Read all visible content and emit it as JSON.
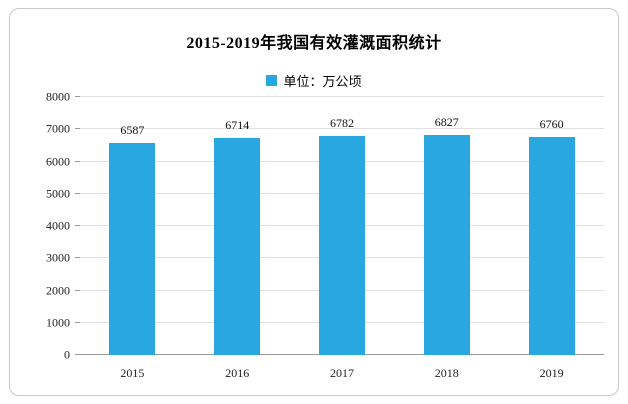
{
  "chart_data": {
    "type": "bar",
    "title": "2015-2019年我国有效灌溉面积统计",
    "legend": "单位：万公顷",
    "categories": [
      "2015",
      "2016",
      "2017",
      "2018",
      "2019"
    ],
    "values": [
      6587,
      6714,
      6782,
      6827,
      6760
    ],
    "ylabel": "",
    "xlabel": "",
    "ylim": [
      0,
      8000
    ],
    "ytick_step": 1000,
    "grid": true,
    "legend_position": "top-center",
    "bar_color": "#29a7e1"
  }
}
